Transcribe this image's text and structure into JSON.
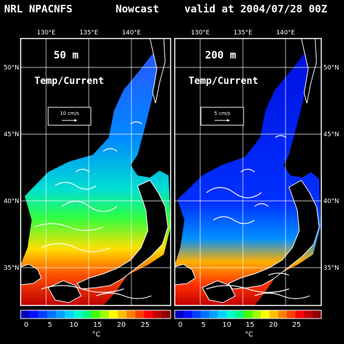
{
  "header": {
    "model": "NRL NPACNFS",
    "kind": "Nowcast",
    "valid": "valid at 2004/07/28 00Z"
  },
  "panels": [
    {
      "depth": "50 m",
      "field": "Temp/Current",
      "ref_vector": "10 cm/s"
    },
    {
      "depth": "200 m",
      "field": "Temp/Current",
      "ref_vector": "5 cm/s"
    }
  ],
  "lon_labels": [
    "130°E",
    "135°E",
    "140°E"
  ],
  "lat_labels": [
    "50°N",
    "45°N",
    "40°N",
    "35°N"
  ],
  "colorbar": {
    "ticks": [
      "0",
      "5",
      "10",
      "15",
      "20",
      "25"
    ],
    "unit": "°C",
    "colors": [
      "#0000c0",
      "#0010ff",
      "#0040ff",
      "#0070ff",
      "#00a0ff",
      "#00d0ff",
      "#00ffd0",
      "#00ff80",
      "#40ff00",
      "#a0ff00",
      "#ffff00",
      "#ffc000",
      "#ff8000",
      "#ff4000",
      "#ff0000",
      "#c00000",
      "#900000"
    ]
  }
}
